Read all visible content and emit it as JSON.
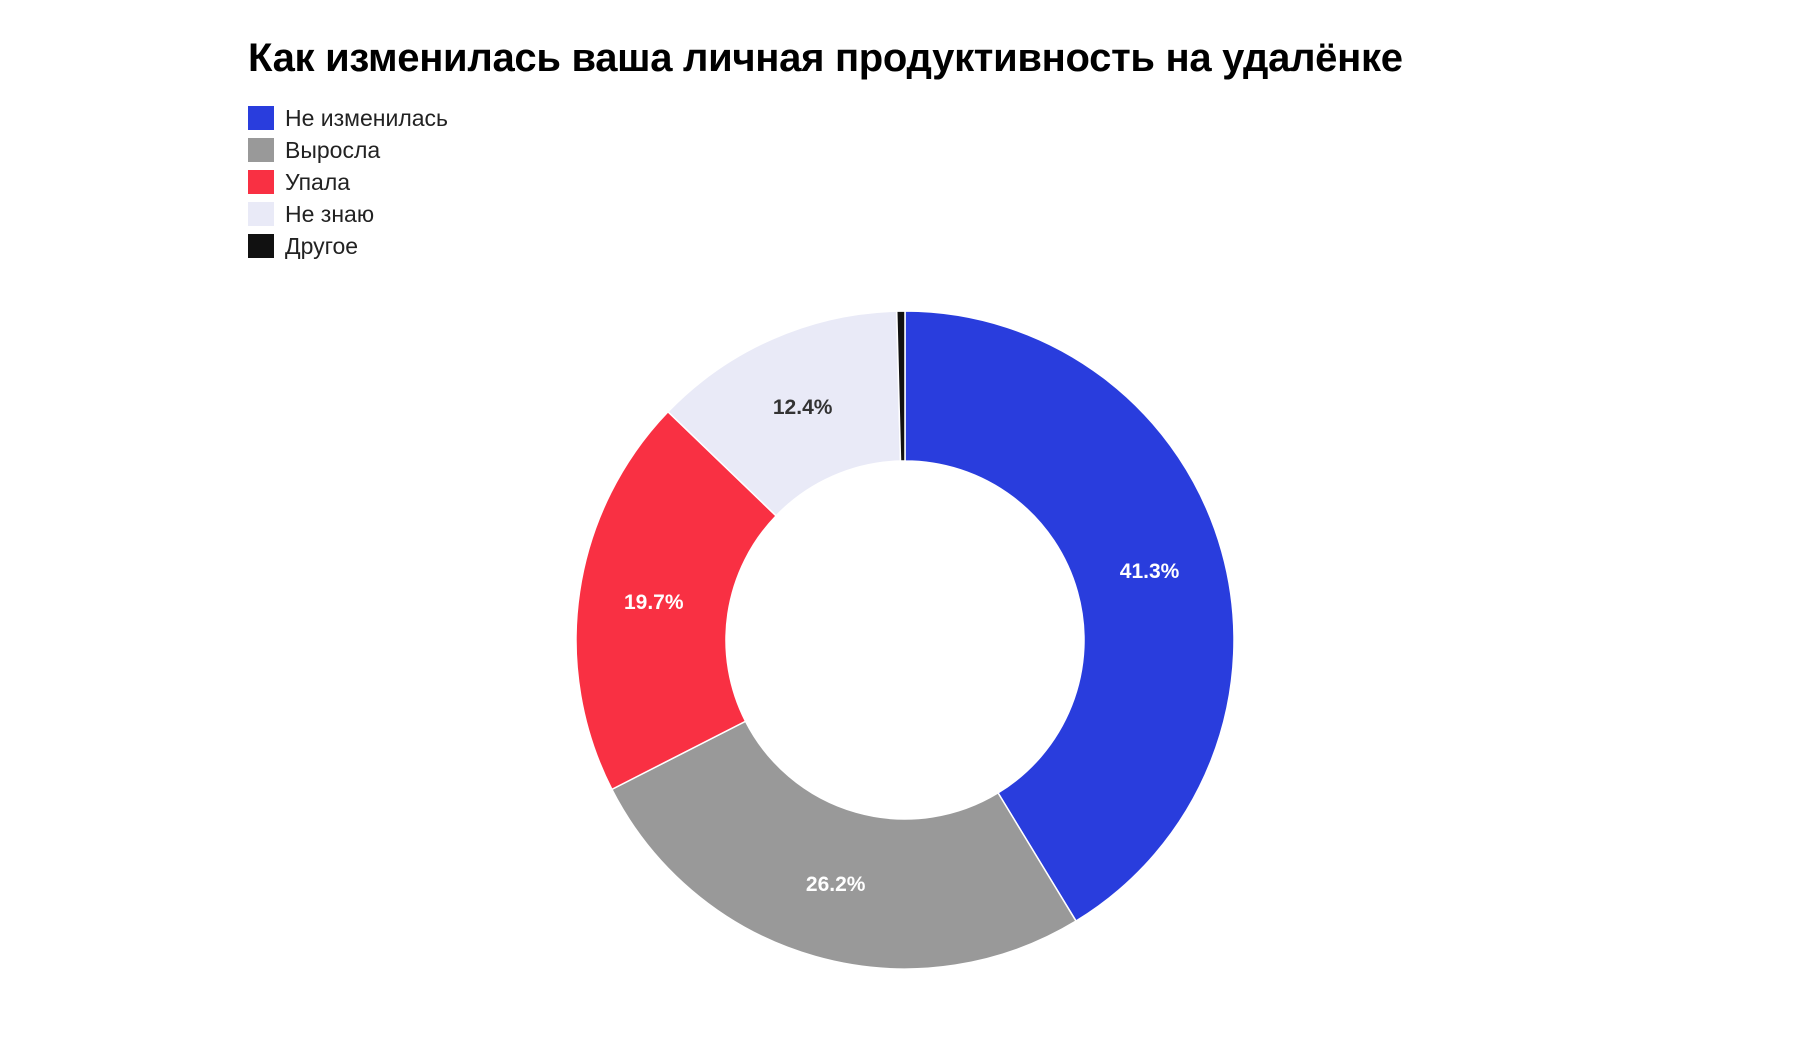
{
  "chart_data": {
    "type": "pie",
    "title": "Как изменилась ваша личная продуктивность на удалёнке",
    "legend_position": "top-left",
    "donut": true,
    "slices": [
      {
        "label": "Не изменилась",
        "value": 41.3,
        "value_label": "41.3%",
        "color": "#293ddd",
        "text_color": "#ffffff"
      },
      {
        "label": "Выросла",
        "value": 26.2,
        "value_label": "26.2%",
        "color": "#999999",
        "text_color": "#ffffff"
      },
      {
        "label": "Упала",
        "value": 19.7,
        "value_label": "19.7%",
        "color": "#f93043",
        "text_color": "#ffffff"
      },
      {
        "label": "Не знаю",
        "value": 12.4,
        "value_label": "12.4%",
        "color": "#e9eaf7",
        "text_color": "#333333"
      },
      {
        "label": "Другое",
        "value": 0.4,
        "value_label": "",
        "color": "#111111",
        "text_color": "#ffffff"
      }
    ]
  }
}
